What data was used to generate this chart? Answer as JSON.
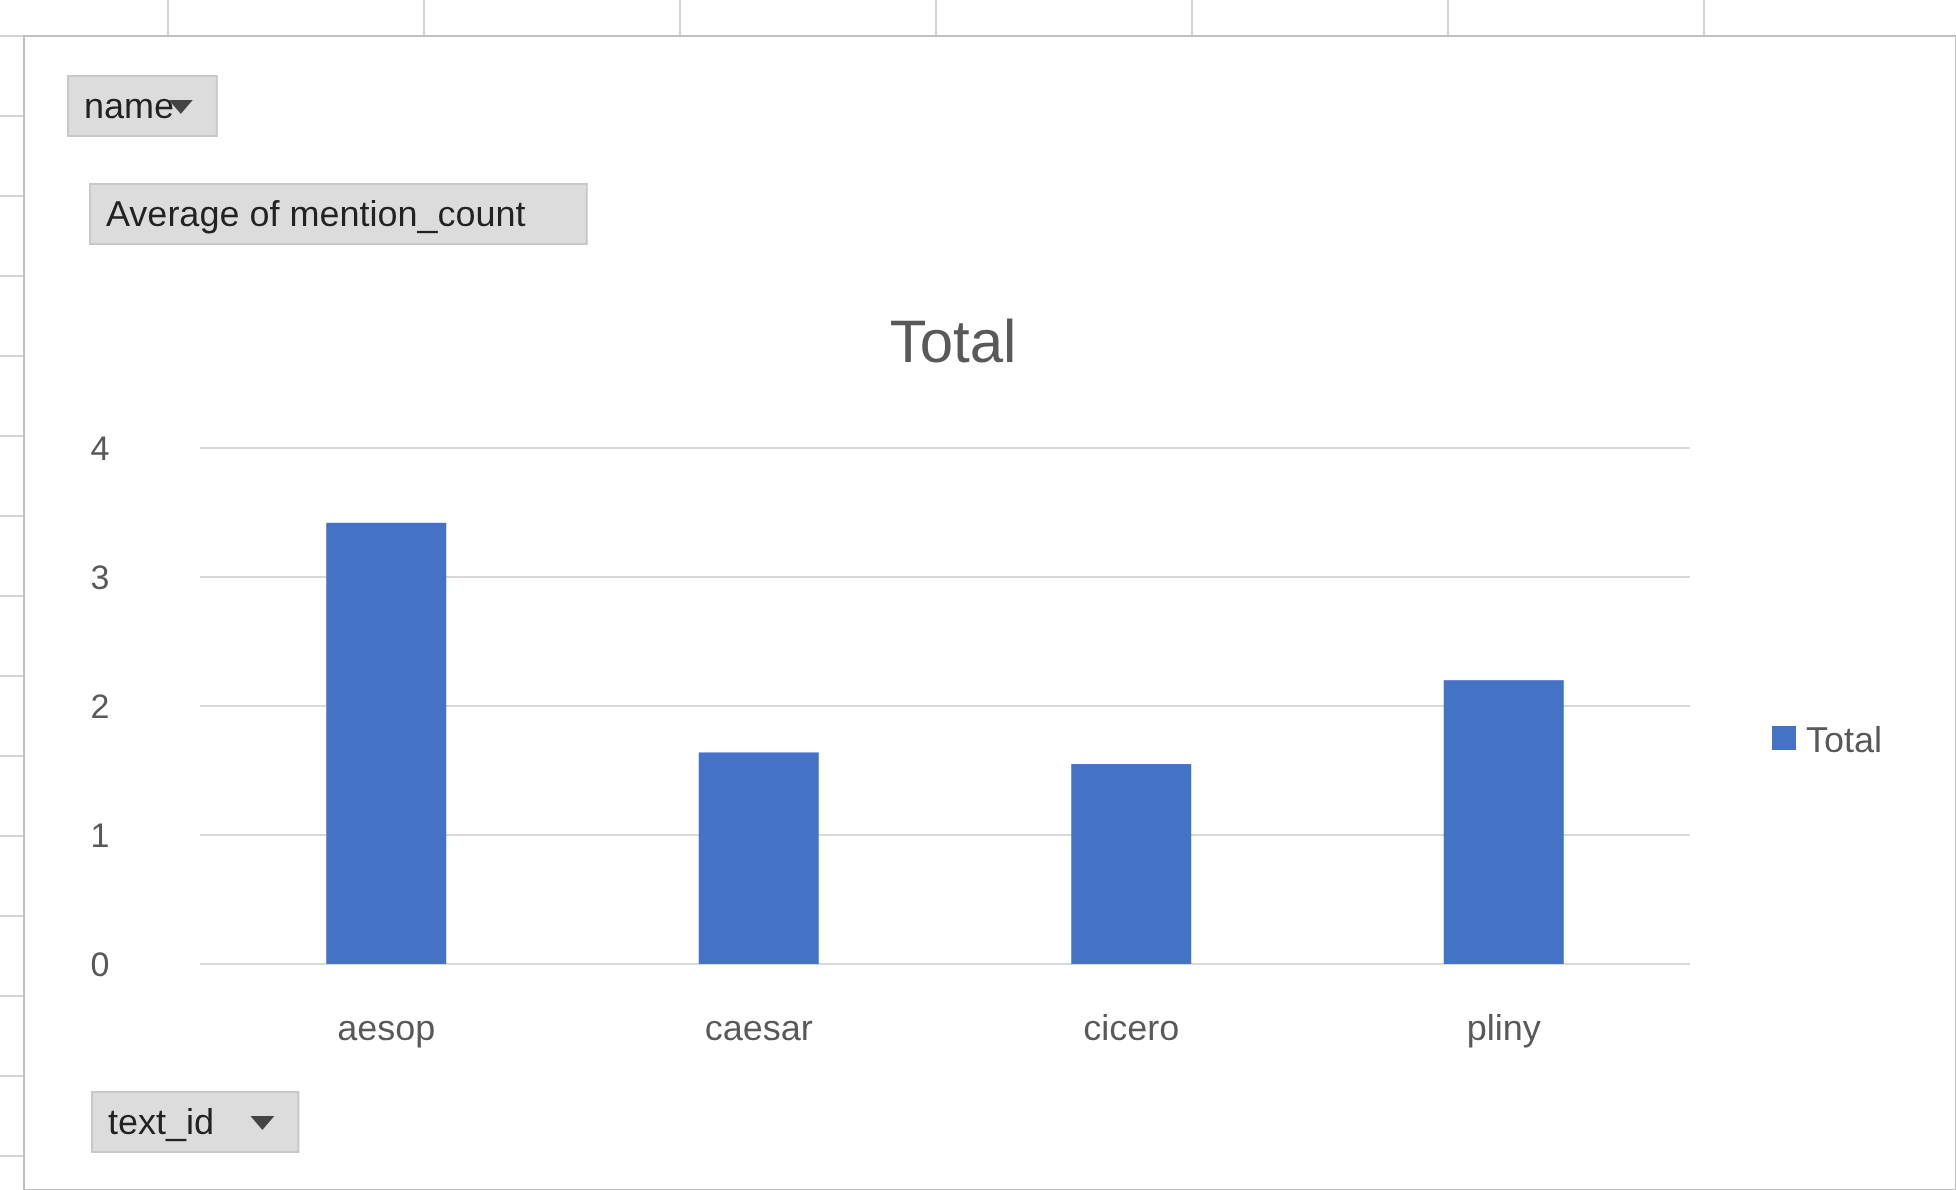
{
  "chart_data": {
    "type": "bar",
    "title": "Total",
    "categories": [
      "aesop",
      "caesar",
      "cicero",
      "pliny"
    ],
    "series": [
      {
        "name": "Total",
        "color": "#4472c4",
        "values": [
          3.42,
          1.64,
          1.55,
          2.2
        ]
      }
    ],
    "ylim": [
      0,
      4
    ],
    "yticks": [
      0,
      1,
      2,
      3,
      4
    ],
    "grid": "y",
    "legend": "right",
    "annotations": [
      "name",
      "Average of mention_count",
      "text_id"
    ]
  }
}
